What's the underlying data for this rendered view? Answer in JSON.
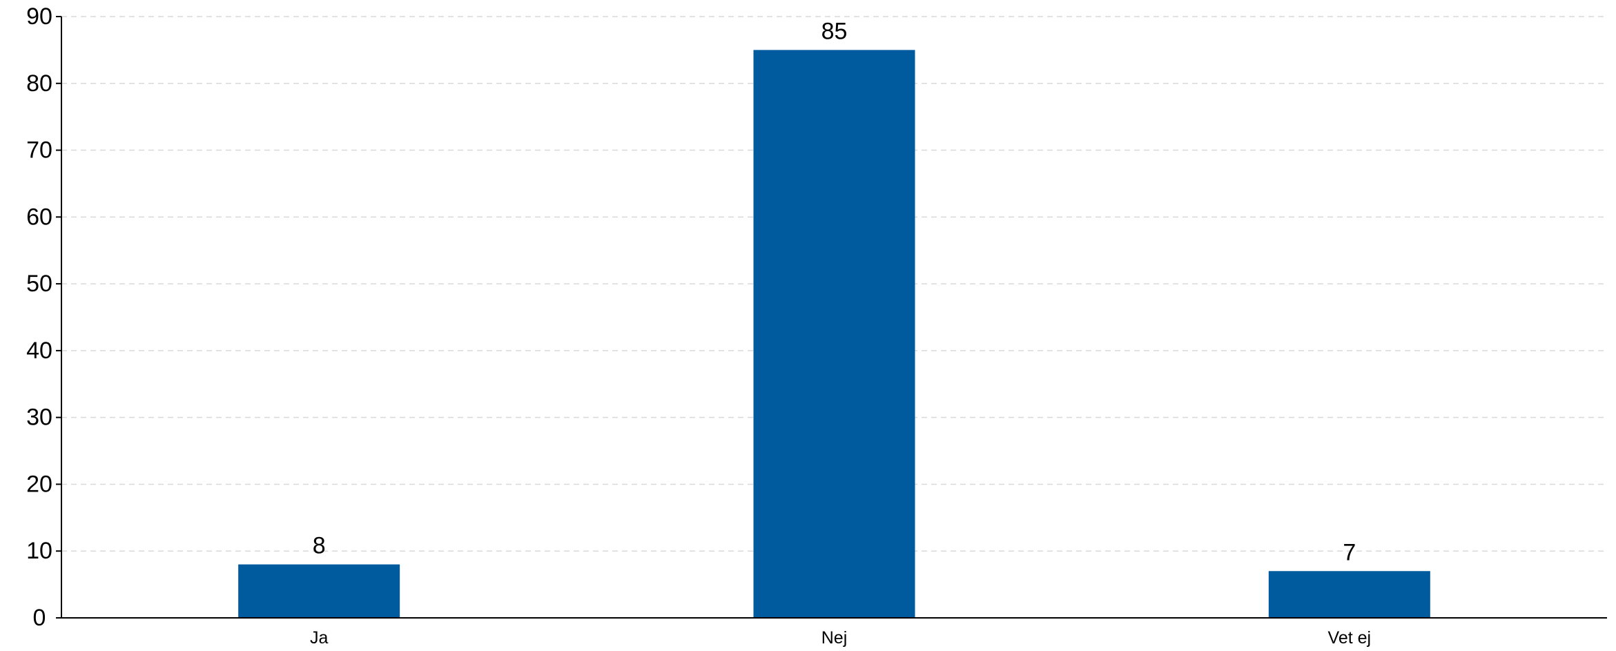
{
  "chart_data": {
    "type": "bar",
    "title": "",
    "xlabel": "",
    "ylabel": "",
    "categories": [
      "Ja",
      "Nej",
      "Vet ej"
    ],
    "values": [
      8,
      85,
      7
    ],
    "data_labels": [
      "8",
      "85",
      "7"
    ],
    "ylim": [
      0,
      90
    ],
    "yticks": [
      0,
      10,
      20,
      30,
      40,
      50,
      60,
      70,
      80,
      90
    ],
    "grid": true,
    "legend": "none",
    "bar_color": "#005a9e",
    "grid_color": "#d9d9d9"
  }
}
